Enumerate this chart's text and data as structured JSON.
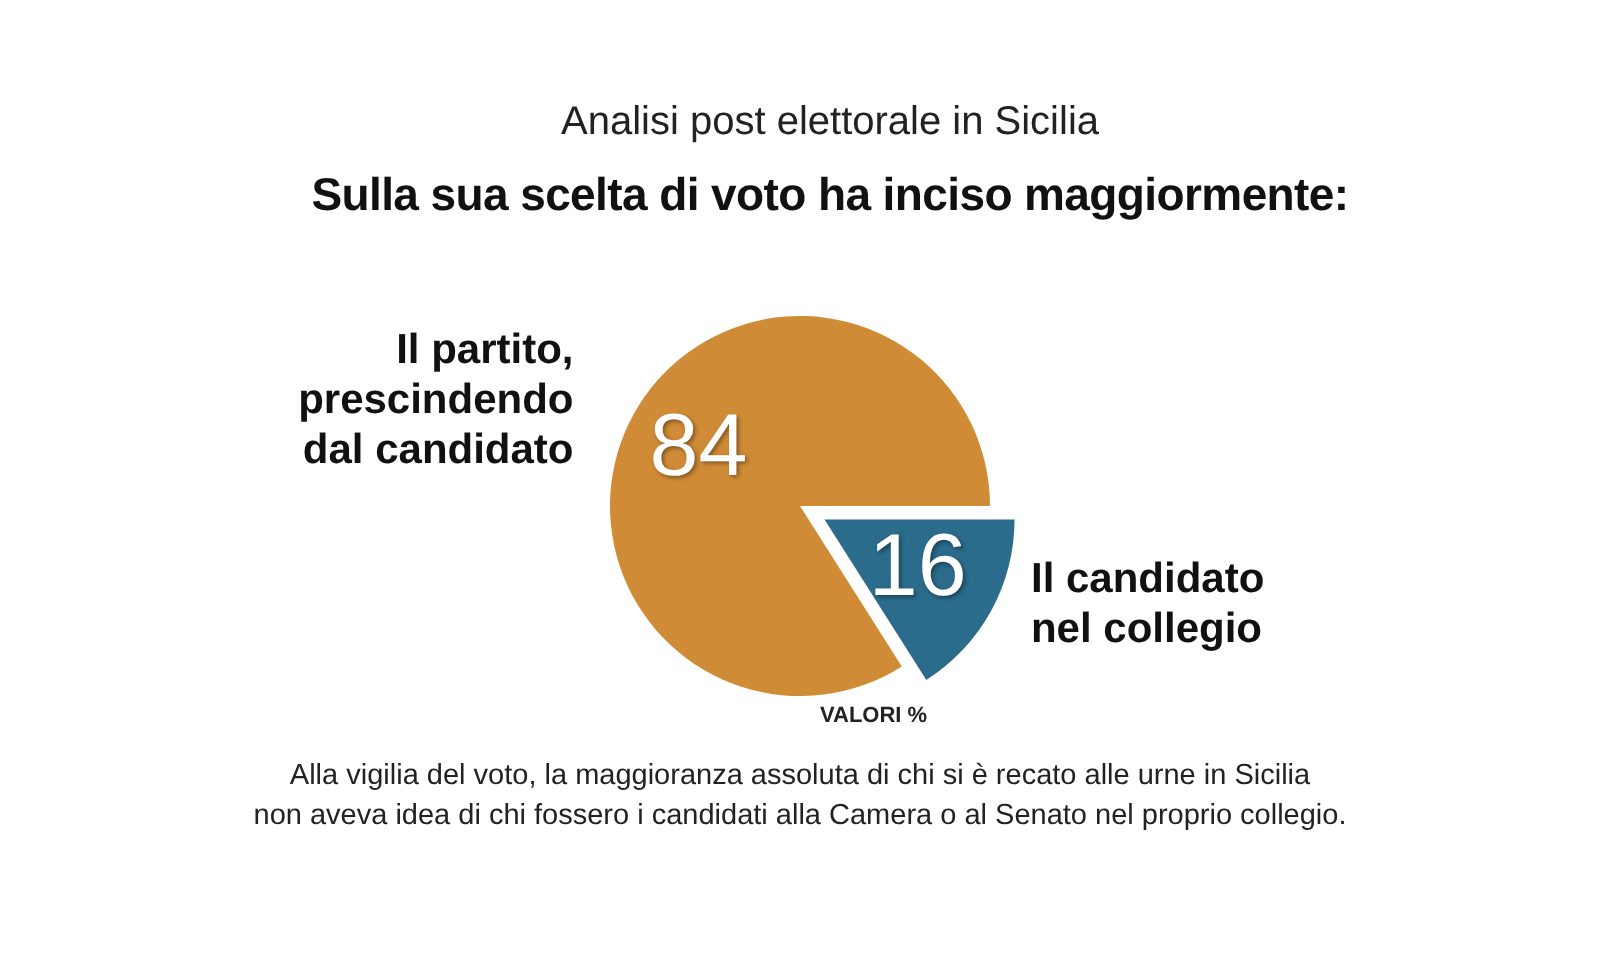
{
  "chart_data": {
    "type": "pie",
    "title": "Analisi post elettorale in Sicilia",
    "subtitle": "Sulla sua scelta di voto ha inciso maggiormente:",
    "categories": [
      "Il partito, prescindendo dal candidato",
      "Il candidato nel collegio"
    ],
    "values": [
      84,
      16
    ],
    "colors": [
      "#d08b36",
      "#2b6b8c"
    ],
    "data_labels": true,
    "annotations": [
      "VALORI %",
      "Alla vigilia del voto, la maggioranza assoluta di chi si è recato alle urne in Sicilia\nnon aveva idea di chi fossero i candidati alla Camera o al Senato nel proprio collegio."
    ]
  }
}
